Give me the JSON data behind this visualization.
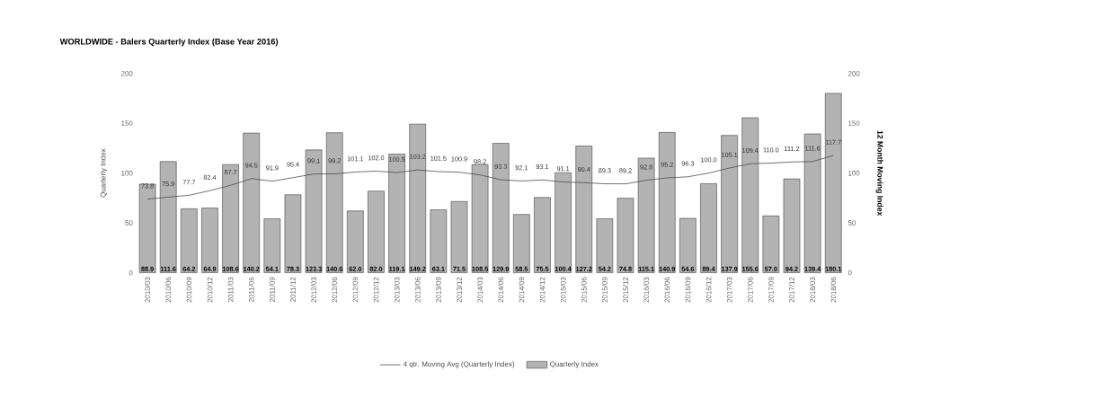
{
  "chart_data": {
    "type": "bar",
    "title": "WORLDWIDE - Balers Quarterly Index (Base Year 2016)",
    "ylabel": "Quarterly Index",
    "y2label": "12 Month Moving Index",
    "categories": [
      "2010/03",
      "2010/06",
      "2010/09",
      "2010/12",
      "2011/03",
      "2011/06",
      "2011/09",
      "2011/12",
      "2012/03",
      "2012/06",
      "2012/09",
      "2012/12",
      "2013/03",
      "2013/06",
      "2013/09",
      "2013/12",
      "2014/03",
      "2014/06",
      "2014/09",
      "2014/12",
      "2015/03",
      "2015/06",
      "2015/09",
      "2015/12",
      "2016/03",
      "2016/06",
      "2016/09",
      "2016/12",
      "2017/03",
      "2017/06",
      "2017/09",
      "2017/12",
      "2018/03",
      "2018/06"
    ],
    "series": [
      {
        "name": "4 qtr. Moving Avg (Quarterly Index)",
        "type": "line",
        "axis": "y2",
        "color": "#4d4d4d",
        "values": [
          73.8,
          75.9,
          77.7,
          82.4,
          87.7,
          94.5,
          91.9,
          95.4,
          99.1,
          99.2,
          101.1,
          102.0,
          100.5,
          103.2,
          101.5,
          100.9,
          98.2,
          93.3,
          92.1,
          93.1,
          91.1,
          90.4,
          89.3,
          89.2,
          92.8,
          95.2,
          96.3,
          100.0,
          105.1,
          109.4,
          110.0,
          111.2,
          111.6,
          117.7
        ],
        "value_labels": [
          "73.8",
          "75.9",
          "77.7",
          "82.4",
          "87.7",
          "94.5",
          "91.9",
          "95.4",
          "99.1",
          "99.2",
          "101.1",
          "102.0",
          "100.5",
          "103.2",
          "101.5",
          "100.9",
          "98.2",
          "93.3",
          "92.1",
          "93.1",
          "91.1",
          "90.4",
          "89.3",
          "89.2",
          "92.8",
          "95.2",
          "96.3",
          "100.0",
          "105.1",
          "109.4",
          "110.0",
          "111.2",
          "111.6",
          "117.7"
        ]
      },
      {
        "name": "Quarterly Index",
        "type": "bar",
        "color": "#b3b3b3",
        "values": [
          88.9,
          111.6,
          64.2,
          64.9,
          108.6,
          140.2,
          54.1,
          78.3,
          123.3,
          140.6,
          62.0,
          82.0,
          119.1,
          149.2,
          63.1,
          71.5,
          108.5,
          129.9,
          58.5,
          75.5,
          100.4,
          127.2,
          54.2,
          74.8,
          115.1,
          140.9,
          54.6,
          89.4,
          137.9,
          155.6,
          57.0,
          94.2,
          139.4,
          180.1
        ],
        "value_labels": [
          "88.9",
          "111.6",
          "64.2",
          "64.9",
          "108.6",
          "140.2",
          "54.1",
          "78.3",
          "123.3",
          "140.6",
          "62.0",
          "82.0",
          "119.1",
          "149.2",
          "63.1",
          "71.5",
          "108.5",
          "129.9",
          "58.5",
          "75.5",
          "100.4",
          "127.2",
          "54.2",
          "74.8",
          "115.1",
          "140.9",
          "54.6",
          "89.4",
          "137.9",
          "155.6",
          "57.0",
          "94.2",
          "139.4",
          "180.1"
        ]
      }
    ],
    "ylim": [
      0,
      200
    ],
    "yticks": [
      0,
      50,
      100,
      150,
      200
    ],
    "y2lim": [
      0,
      200
    ],
    "y2ticks": [
      0,
      50,
      100,
      150,
      200
    ],
    "legend": "bottom"
  }
}
